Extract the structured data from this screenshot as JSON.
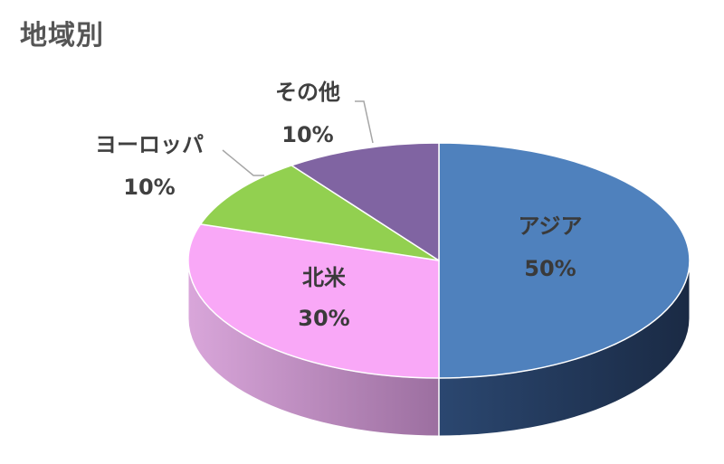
{
  "chart_data": {
    "type": "pie",
    "title": "地域別",
    "categories": [
      "アジア",
      "北米",
      "ヨーロッパ",
      "その他"
    ],
    "values": [
      50,
      30,
      10,
      10
    ],
    "value_labels": [
      "50%",
      "30%",
      "10%",
      "10%"
    ],
    "colors": [
      "#4F81BD",
      "#F9A8F7",
      "#92D050",
      "#8064A2"
    ],
    "side_colors": [
      "#1F3352",
      "#B57DB6",
      "#5F8A33",
      "#4C3A66"
    ],
    "style": "3d"
  }
}
